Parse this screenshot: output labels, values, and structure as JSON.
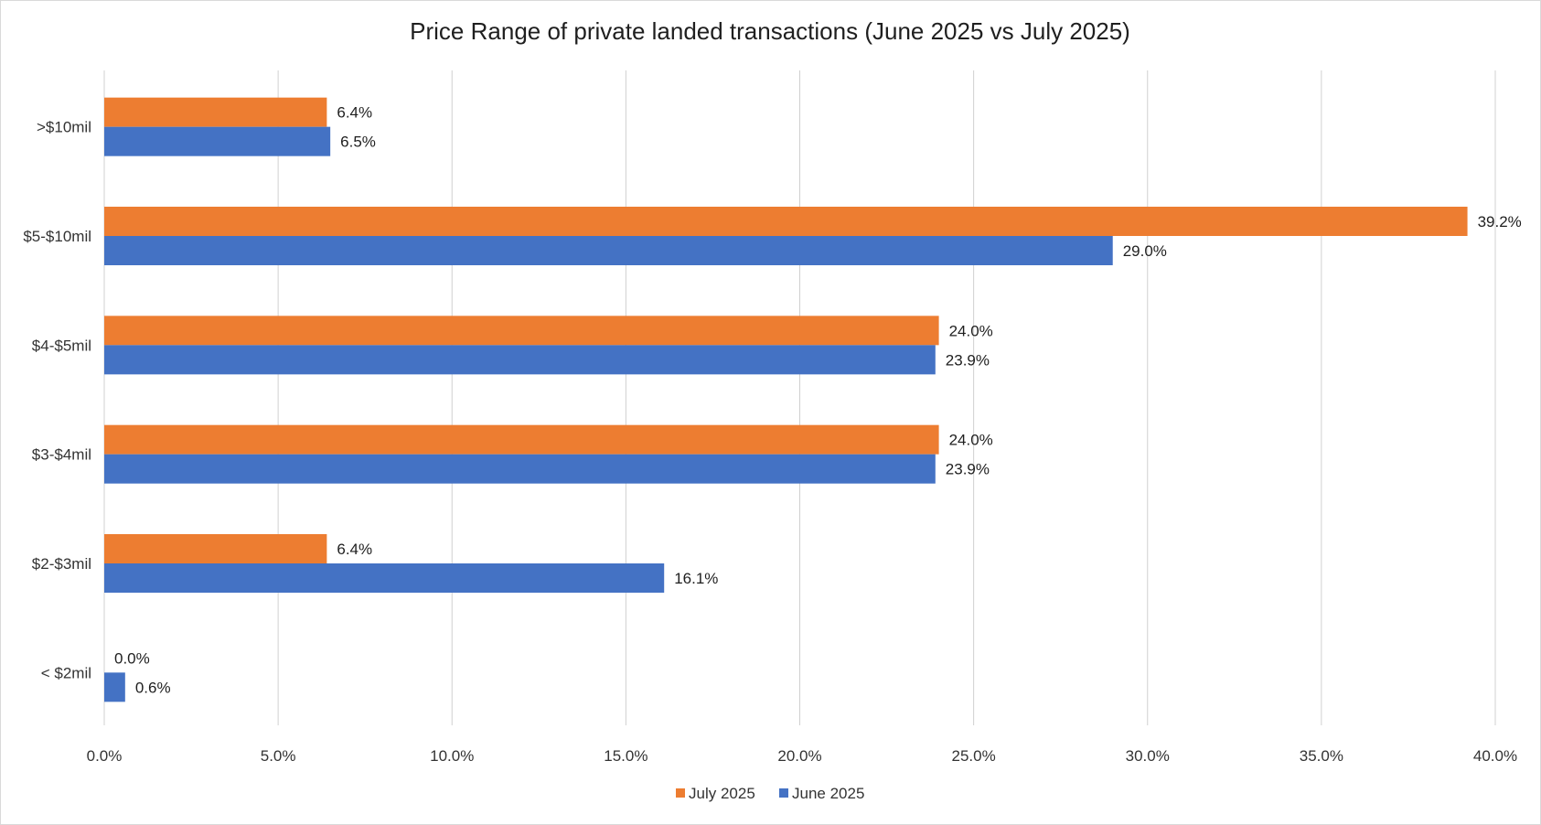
{
  "chart_data": {
    "type": "bar",
    "orientation": "horizontal",
    "title": "Price Range of private landed transactions (June 2025 vs July 2025)",
    "categories": [
      "< $2mil",
      "$2-$3mil",
      "$3-$4mil",
      "$4-$5mil",
      "$5-$10mil",
      ">$10mil"
    ],
    "series": [
      {
        "name": "June 2025",
        "color": "#4472c4",
        "values": [
          0.6,
          16.1,
          23.9,
          23.9,
          29.0,
          6.5
        ],
        "labels": [
          "0.6%",
          "16.1%",
          "23.9%",
          "23.9%",
          "29.0%",
          "6.5%"
        ]
      },
      {
        "name": "July 2025",
        "color": "#ed7d31",
        "values": [
          0.0,
          6.4,
          24.0,
          24.0,
          39.2,
          6.4
        ],
        "labels": [
          "0.0%",
          "6.4%",
          "24.0%",
          "24.0%",
          "39.2%",
          "6.4%"
        ]
      }
    ],
    "xlim": [
      0,
      40
    ],
    "xticks": [
      0,
      5,
      10,
      15,
      20,
      25,
      30,
      35,
      40
    ],
    "xtick_labels": [
      "0.0%",
      "5.0%",
      "10.0%",
      "15.0%",
      "20.0%",
      "25.0%",
      "30.0%",
      "35.0%",
      "40.0%"
    ],
    "grid": "vertical",
    "legend": {
      "position": "bottom",
      "entries": [
        "July 2025",
        "June 2025"
      ]
    }
  }
}
